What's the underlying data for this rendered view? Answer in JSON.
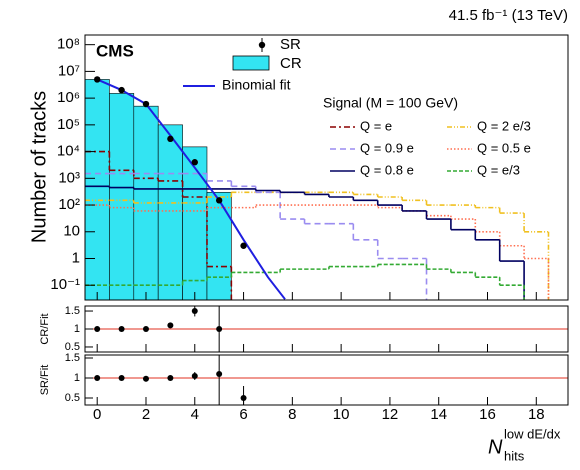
{
  "chart_data": [
    {
      "type": "step",
      "title": "CMS",
      "lumi": "41.5 fb⁻¹ (13 TeV)",
      "y_label": "Number of tracks",
      "x_label": {
        "main": "N",
        "sub": "hits",
        "sup": "low dE/dx"
      },
      "log_y": true,
      "xlim": [
        -0.5,
        19.3
      ],
      "xticks": [
        0,
        2,
        4,
        6,
        8,
        10,
        12,
        14,
        16,
        18
      ],
      "ylim": [
        0.028,
        230000000
      ],
      "yticks": [
        {
          "value": 100000000,
          "label": "10⁸"
        },
        {
          "value": 10000000,
          "label": "10⁷"
        },
        {
          "value": 1000000,
          "label": "10⁶"
        },
        {
          "value": 100000,
          "label": "10⁵"
        },
        {
          "value": 10000,
          "label": "10⁴"
        },
        {
          "value": 1000,
          "label": "10³"
        },
        {
          "value": 100,
          "label": "10²"
        },
        10,
        1,
        {
          "value": 0.1,
          "label": "10⁻¹"
        }
      ],
      "sr": {
        "name": "SR",
        "color": "#000000",
        "x": [
          0,
          1,
          2,
          3,
          4,
          5,
          6
        ],
        "values": [
          5000000,
          2000000,
          600000,
          30000,
          4000,
          150,
          3
        ]
      },
      "cr": {
        "name": "CR",
        "color": "#33e4f2",
        "x": [
          0,
          1,
          2,
          3,
          4,
          5
        ],
        "values": [
          5000000,
          1500000,
          500000,
          100000,
          15000,
          300
        ]
      },
      "fit": {
        "name": "Binomial fit",
        "color": "#1f1fe0",
        "x": [
          0,
          1,
          2,
          3,
          4,
          5,
          6,
          7,
          7.7
        ],
        "values": [
          5000000,
          2000000,
          600000,
          40000,
          2500,
          150,
          5,
          0.2,
          0.03
        ]
      },
      "signal_title": "Signal (M = 100 GeV)",
      "series": [
        {
          "name": "Q = e",
          "color": "#8b0000",
          "dash": "6,3,2,3",
          "values": [
            10000,
            2000,
            1000,
            800,
            200,
            0.5
          ]
        },
        {
          "name": "Q = 2 e/3",
          "color": "#f0c020",
          "dash": "5,2,1,2,1,2",
          "values": [
            150,
            150,
            120,
            120,
            120,
            200,
            300,
            300,
            300,
            300,
            300,
            250,
            200,
            150,
            100,
            100,
            80,
            50,
            10
          ]
        },
        {
          "name": "Q = 0.9 e",
          "color": "#9a8cf0",
          "dash": "6,4",
          "values": [
            1500,
            1500,
            1500,
            1500,
            1500,
            800,
            500,
            300,
            30,
            20,
            20,
            5,
            1,
            1
          ]
        },
        {
          "name": "Q = 0.5 e",
          "color": "#ff6f50",
          "dash": "1.5,2",
          "values": [
            100,
            80,
            60,
            60,
            60,
            80,
            80,
            100,
            100,
            100,
            100,
            100,
            80,
            60,
            40,
            30,
            10,
            3,
            1
          ]
        },
        {
          "name": "Q = 0.8 e",
          "color": "#000060",
          "dash": "",
          "values": [
            500,
            450,
            400,
            400,
            400,
            400,
            400,
            350,
            300,
            250,
            200,
            150,
            100,
            60,
            30,
            12,
            5,
            0.8
          ]
        },
        {
          "name": "Q = e/3",
          "color": "#33aa33",
          "dash": "4,2",
          "values": [
            0.1,
            0.1,
            0.1,
            0.1,
            0.15,
            0.2,
            0.3,
            0.3,
            0.4,
            0.4,
            0.5,
            0.5,
            0.6,
            0.6,
            0.4,
            0.3,
            0.2,
            0.1
          ]
        }
      ]
    },
    {
      "type": "scatter",
      "y_label": "CR/Fit",
      "ylim": [
        0.36,
        1.64
      ],
      "yticks": [
        0.5,
        1,
        1.5
      ],
      "reference_line": 1,
      "x": [
        0,
        1,
        2,
        3,
        4,
        5
      ],
      "values": [
        1,
        1,
        1,
        1.1,
        1.5,
        1
      ],
      "errors": [
        0,
        0,
        0,
        0.05,
        0.15,
        1.5
      ]
    },
    {
      "type": "scatter",
      "y_label": "SR/Fit",
      "ylim": [
        0.325,
        1.575
      ],
      "yticks": [
        0.5,
        1,
        1.5
      ],
      "reference_line": 1,
      "x": [
        0,
        1,
        2,
        3,
        4,
        5,
        6
      ],
      "values": [
        1,
        1,
        0.98,
        1,
        1.05,
        1.1,
        0.5
      ],
      "errors": [
        0,
        0,
        0,
        0.03,
        0.1,
        1,
        0.3
      ]
    }
  ]
}
